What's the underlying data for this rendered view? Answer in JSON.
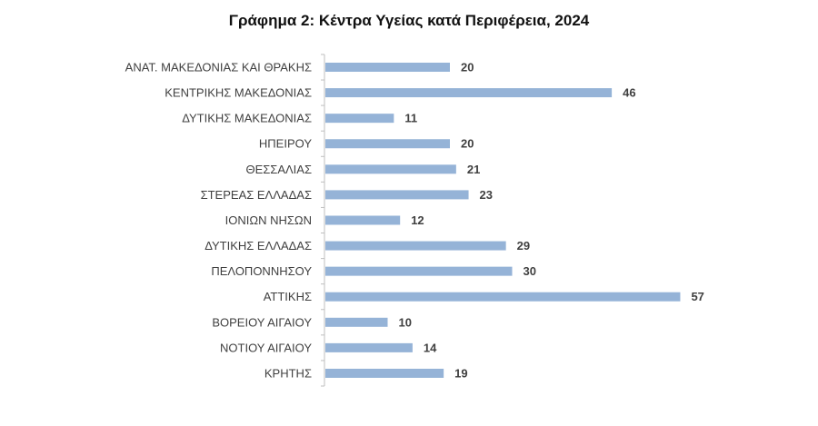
{
  "chart_data": {
    "type": "bar",
    "orientation": "horizontal",
    "title": "Γράφημα 2: Κέντρα Υγείας κατά Περιφέρεια, 2024",
    "xlabel": "",
    "ylabel": "",
    "categories": [
      "ΑΝΑΤ. ΜΑΚΕΔΟΝΙΑΣ ΚΑΙ ΘΡΑΚΗΣ",
      "ΚΕΝΤΡΙΚΗΣ ΜΑΚΕΔΟΝΙΑΣ",
      "ΔΥΤΙΚΗΣ ΜΑΚΕΔΟΝΙΑΣ",
      "ΗΠΕΙΡΟΥ",
      "ΘΕΣΣΑΛΙΑΣ",
      "ΣΤΕΡΕΑΣ ΕΛΛΑΔΑΣ",
      "ΙΟΝΙΩΝ ΝΗΣΩΝ",
      "ΔΥΤΙΚΗΣ ΕΛΛΑΔΑΣ",
      "ΠΕΛΟΠΟΝΝΗΣΟΥ",
      "ΑΤΤΙΚΗΣ",
      "ΒΟΡΕΙΟΥ ΑΙΓΑΙΟΥ",
      "ΝΟΤΙΟΥ ΑΙΓΑΙΟΥ",
      "ΚΡΗΤΗΣ"
    ],
    "values": [
      20,
      46,
      11,
      20,
      21,
      23,
      12,
      29,
      30,
      57,
      10,
      14,
      19
    ],
    "data_labels": [
      "20",
      "46",
      "11",
      "20",
      "21",
      "23",
      "12",
      "29",
      "30",
      "57",
      "10",
      "14",
      "19"
    ],
    "xlim": [
      0,
      60
    ],
    "grid": false,
    "legend": "none",
    "bar_color": "#95b3d7",
    "axis_color": "#bfbfbf",
    "label_color": "#404040",
    "title_color": "#111111"
  }
}
